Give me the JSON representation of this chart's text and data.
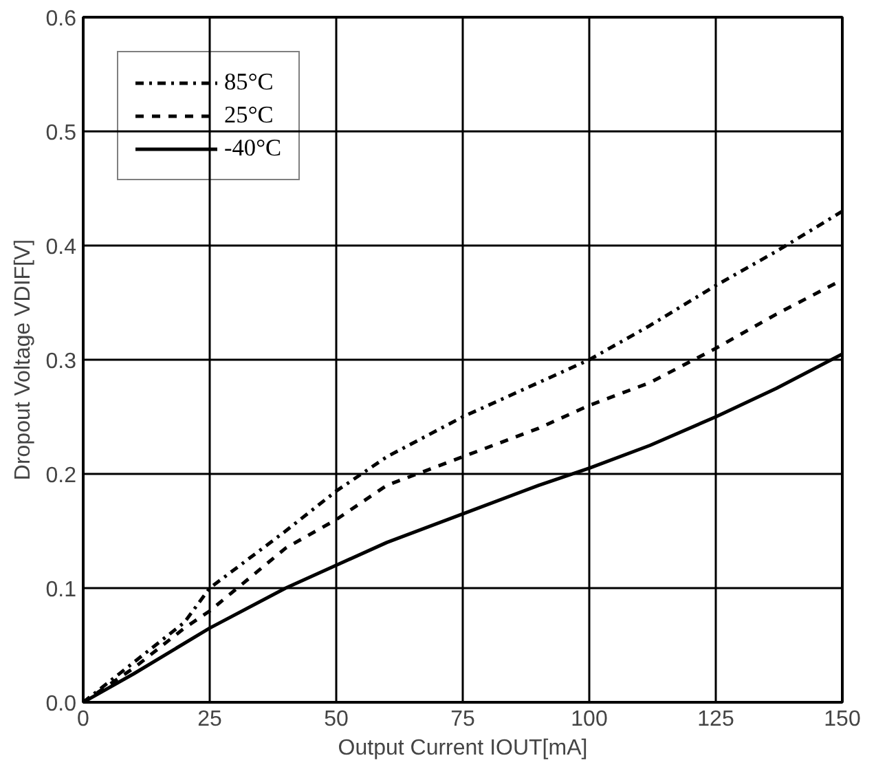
{
  "chart_data": {
    "type": "line",
    "xlabel": "Output Current IOUT[mA]",
    "ylabel": "Dropout Voltage VDIF[V]",
    "xlim": [
      0,
      150
    ],
    "ylim": [
      0,
      0.6
    ],
    "xticks": [
      0,
      25,
      50,
      75,
      100,
      125,
      150
    ],
    "yticks": [
      {
        "value": 0,
        "label": "0.0"
      },
      0.1,
      0.2,
      0.3,
      0.4,
      0.5,
      0.6
    ],
    "grid": true,
    "legend": "top left",
    "marker": "none",
    "series": [
      {
        "name": "85°C",
        "color": "#000000",
        "line_style": "dashdot",
        "x": [
          0,
          10,
          20,
          25,
          40,
          50,
          60,
          75,
          90,
          100,
          112,
          125,
          137,
          150
        ],
        "values": [
          0,
          0.035,
          0.07,
          0.1,
          0.15,
          0.185,
          0.215,
          0.25,
          0.28,
          0.3,
          0.33,
          0.365,
          0.395,
          0.43
        ]
      },
      {
        "name": "25°C",
        "color": "#000000",
        "line_style": "dashed",
        "x": [
          0,
          10,
          20,
          25,
          40,
          50,
          60,
          75,
          90,
          100,
          112,
          125,
          137,
          150
        ],
        "values": [
          0,
          0.03,
          0.065,
          0.08,
          0.135,
          0.16,
          0.19,
          0.215,
          0.24,
          0.26,
          0.28,
          0.31,
          0.34,
          0.37
        ]
      },
      {
        "name": "-40°C",
        "color": "#000000",
        "line_style": "solid",
        "x": [
          0,
          10,
          25,
          40,
          50,
          60,
          75,
          90,
          100,
          112,
          125,
          137,
          150
        ],
        "values": [
          0,
          0.025,
          0.065,
          0.1,
          0.12,
          0.14,
          0.165,
          0.19,
          0.205,
          0.225,
          0.25,
          0.275,
          0.305
        ]
      }
    ]
  }
}
